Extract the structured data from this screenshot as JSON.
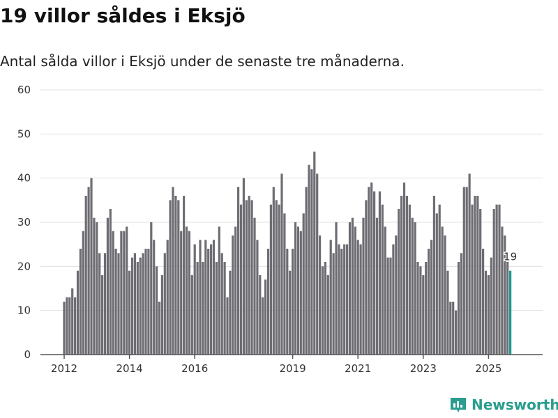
{
  "title": "19 villor såldes i Eksjö",
  "subtitle": "Antal sålda villor i Eksjö under de senaste tre månaderna.",
  "brand": "Newsworthy",
  "colors": {
    "bar": "#6e6d73",
    "highlight": "#1a9a8e",
    "grid": "#e0e0e0",
    "axis": "#555555"
  },
  "chart_data": {
    "type": "bar",
    "title": "19 villor såldes i Eksjö",
    "xlabel": "",
    "ylabel": "",
    "ylim": [
      0,
      60
    ],
    "yticks": [
      "0",
      "10",
      "20",
      "30",
      "40",
      "50",
      "60"
    ],
    "xticks": [
      {
        "label": "2012",
        "year": 2012
      },
      {
        "label": "2014",
        "year": 2014
      },
      {
        "label": "2016",
        "year": 2016
      },
      {
        "label": "2019",
        "year": 2019
      },
      {
        "label": "2021",
        "year": 2021
      },
      {
        "label": "2023",
        "year": 2023
      },
      {
        "label": "2025",
        "year": 2025
      }
    ],
    "start_year": 2012,
    "interval": "month",
    "values": [
      12,
      13,
      13,
      15,
      13,
      19,
      24,
      28,
      36,
      38,
      40,
      31,
      30,
      23,
      18,
      23,
      31,
      33,
      28,
      24,
      23,
      28,
      28,
      29,
      19,
      22,
      23,
      21,
      22,
      23,
      24,
      24,
      30,
      26,
      20,
      12,
      18,
      23,
      26,
      35,
      38,
      36,
      35,
      28,
      36,
      29,
      28,
      18,
      25,
      21,
      26,
      21,
      26,
      24,
      25,
      26,
      21,
      29,
      23,
      21,
      13,
      19,
      27,
      29,
      38,
      34,
      40,
      35,
      36,
      35,
      31,
      26,
      18,
      13,
      17,
      24,
      34,
      38,
      35,
      34,
      41,
      32,
      24,
      19,
      24,
      30,
      29,
      28,
      32,
      38,
      43,
      42,
      46,
      41,
      27,
      20,
      21,
      18,
      26,
      23,
      30,
      25,
      24,
      25,
      25,
      30,
      31,
      29,
      26,
      25,
      31,
      35,
      38,
      39,
      37,
      31,
      37,
      34,
      29,
      22,
      22,
      25,
      27,
      33,
      36,
      39,
      36,
      34,
      31,
      30,
      21,
      20,
      18,
      21,
      24,
      26,
      36,
      32,
      34,
      29,
      27,
      19,
      12,
      12,
      10,
      21,
      23,
      38,
      38,
      41,
      34,
      36,
      36,
      33,
      24,
      19,
      18,
      22,
      33,
      34,
      34,
      29,
      27,
      21,
      19
    ],
    "last_label": "19"
  }
}
